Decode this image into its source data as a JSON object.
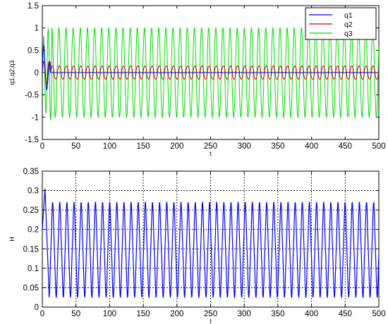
{
  "chart_data": [
    {
      "type": "line",
      "xlabel": "t",
      "ylabel": "q1,q2,q3",
      "xlim": [
        0,
        500
      ],
      "ylim": [
        -1.5,
        1.5
      ],
      "xticks": [
        "0",
        "50",
        "100",
        "150",
        "200",
        "250",
        "300",
        "350",
        "400",
        "450",
        "500"
      ],
      "yticks": [
        "-1.5",
        "-1",
        "-0.5",
        "0",
        "0.5",
        "1",
        "1.5"
      ],
      "grid": false,
      "legend_position": "top-right",
      "series": [
        {
          "name": "q1",
          "color": "#0000ff",
          "description": "transient near t=0-10, then ~0",
          "values": [
            [
              0,
              0
            ],
            [
              1,
              0.3
            ],
            [
              2,
              0.6
            ],
            [
              3,
              0.75
            ],
            [
              4,
              0.5
            ],
            [
              5,
              0.2
            ],
            [
              6,
              -0.2
            ],
            [
              7,
              -0.5
            ],
            [
              8,
              -0.7
            ],
            [
              9,
              -0.4
            ],
            [
              10,
              0.1
            ],
            [
              11,
              0.05
            ],
            [
              12,
              0
            ],
            [
              500,
              0
            ]
          ]
        },
        {
          "name": "q2",
          "color": "#cc0000",
          "amplitude": 0.15,
          "period": 10.6,
          "values": [
            [
              0,
              0
            ],
            [
              2,
              0.15
            ],
            [
              4,
              0.25
            ],
            [
              6,
              0.1
            ],
            [
              8,
              -0.15
            ],
            [
              10,
              -0.2
            ],
            [
              12,
              0.05
            ],
            [
              500,
              0.15
            ]
          ]
        },
        {
          "name": "q3",
          "color": "#00dd00",
          "amplitude": 1.0,
          "period": 10.6,
          "values": [
            [
              0,
              0
            ],
            [
              3,
              0.7
            ],
            [
              6,
              0.8
            ],
            [
              9,
              -0.9
            ],
            [
              12,
              -1.05
            ],
            [
              15,
              1.1
            ],
            [
              500,
              1.0
            ]
          ]
        }
      ]
    },
    {
      "type": "line",
      "xlabel": "t",
      "ylabel": "H",
      "xlim": [
        0,
        500
      ],
      "ylim": [
        0,
        0.35
      ],
      "xticks": [
        "0",
        "50",
        "100",
        "150",
        "200",
        "250",
        "300",
        "350",
        "400",
        "450",
        "500"
      ],
      "yticks": [
        "0",
        "0.05",
        "0.1",
        "0.15",
        "0.2",
        "0.25",
        "0.3",
        "0.35"
      ],
      "grid": true,
      "series": [
        {
          "color": "#0000ff",
          "min": 0.025,
          "max": 0.27,
          "period": 10.6,
          "values": [
            [
              0,
              0.2
            ],
            [
              2,
              0.27
            ],
            [
              4,
              0.305
            ],
            [
              6,
              0.2
            ],
            [
              8,
              0.05
            ],
            [
              10,
              0.03
            ],
            [
              500,
              0.16
            ]
          ]
        }
      ]
    }
  ]
}
